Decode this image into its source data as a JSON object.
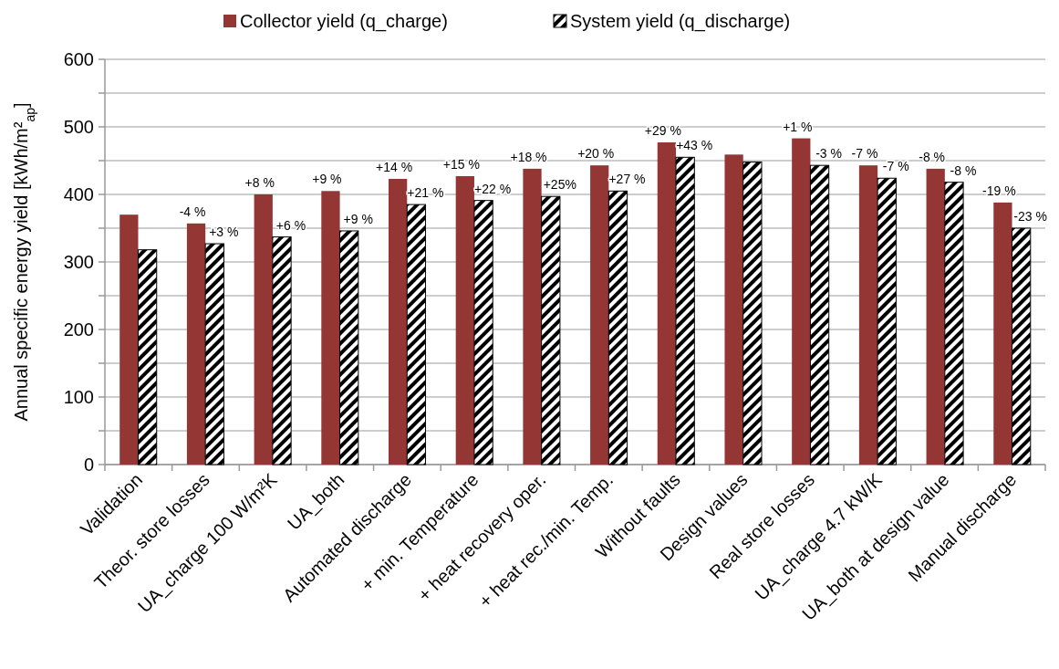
{
  "chart_data": {
    "type": "bar",
    "ylabel": "Annual specific energy yield [kWh/m²$_{ap}$]",
    "categories": [
      "Validation",
      "Theor. store losses",
      "UA_charge 100 W/m²K",
      "UA_both",
      "Automated discharge",
      "+ min. Temperature",
      "+ heat recovery oper.",
      "+ heat rec./min. Temp.",
      "Without faults",
      "Design values",
      "Real store losses",
      "UA_charge 4.7 kW/K",
      "UA_both at design value",
      "Manual discharge"
    ],
    "series": [
      {
        "name": "Collector yield (q_charge)",
        "color": "#943634",
        "values": [
          370,
          357,
          400,
          405,
          423,
          427,
          438,
          443,
          477,
          459,
          483,
          443,
          438,
          388
        ]
      },
      {
        "name": "System yield (q_discharge)",
        "color": "#000000",
        "values": [
          318,
          327,
          337,
          346,
          385,
          391,
          397,
          405,
          455,
          448,
          443,
          424,
          418,
          350
        ]
      }
    ],
    "annotations": [
      {
        "text": "-4 %",
        "x": "Theor. store losses",
        "y": 357
      },
      {
        "text": "+3 %",
        "x": "Theor. store losses",
        "y": 327
      },
      {
        "text": "+8 %",
        "x": "UA_charge 100 W/m²K",
        "y": 400
      },
      {
        "text": "+6 %",
        "x": "UA_charge 100 W/m²K",
        "y": 337
      },
      {
        "text": "+9 %",
        "x": "UA_both",
        "y": 405
      },
      {
        "text": "+9 %",
        "x": "UA_both",
        "y": 346
      },
      {
        "text": "+14 %",
        "x": "Automated discharge",
        "y": 423
      },
      {
        "text": "+21 %",
        "x": "Automated discharge",
        "y": 385
      },
      {
        "text": "+15 %",
        "x": "+ min. Temperature",
        "y": 427
      },
      {
        "text": "+22 %",
        "x": "+ min. Temperature",
        "y": 391
      },
      {
        "text": "+18 %",
        "x": "+ heat recovery oper.",
        "y": 438
      },
      {
        "text": "+25%",
        "x": "+ heat recovery oper.",
        "y": 397
      },
      {
        "text": "+20 %",
        "x": "+ heat rec./min. Temp.",
        "y": 443
      },
      {
        "text": "+27 %",
        "x": "+ heat rec./min. Temp.",
        "y": 405
      },
      {
        "text": "+29 %",
        "x": "Without faults",
        "y": 477
      },
      {
        "text": "+43 %",
        "x": "Without faults",
        "y": 455
      },
      {
        "text": "+1 %",
        "x": "Real store losses",
        "y": 483
      },
      {
        "text": "-3 %",
        "x": "Real store losses",
        "y": 443
      },
      {
        "text": "-7 %",
        "x": "UA_charge 4.7 kW/K",
        "y": 443
      },
      {
        "text": "-7 %",
        "x": "UA_charge 4.7 kW/K",
        "y": 424
      },
      {
        "text": "-8 %",
        "x": "UA_both at design value",
        "y": 438
      },
      {
        "text": "-8 %",
        "x": "UA_both at design value",
        "y": 418
      },
      {
        "text": "-19 %",
        "x": "Manual discharge",
        "y": 388
      },
      {
        "text": "-23 %",
        "x": "Manual discharge",
        "y": 350
      }
    ],
    "ylim": [
      0,
      600
    ],
    "yticks": [
      0,
      {
        "value": 50,
        "label": null
      },
      100,
      {
        "value": 150,
        "label": null
      },
      200,
      {
        "value": 250,
        "label": null
      },
      300,
      {
        "value": 350,
        "label": null
      },
      400,
      {
        "value": 450,
        "label": null
      },
      500,
      {
        "value": 550,
        "label": null
      },
      600
    ],
    "grid": "y",
    "legend": "top"
  }
}
